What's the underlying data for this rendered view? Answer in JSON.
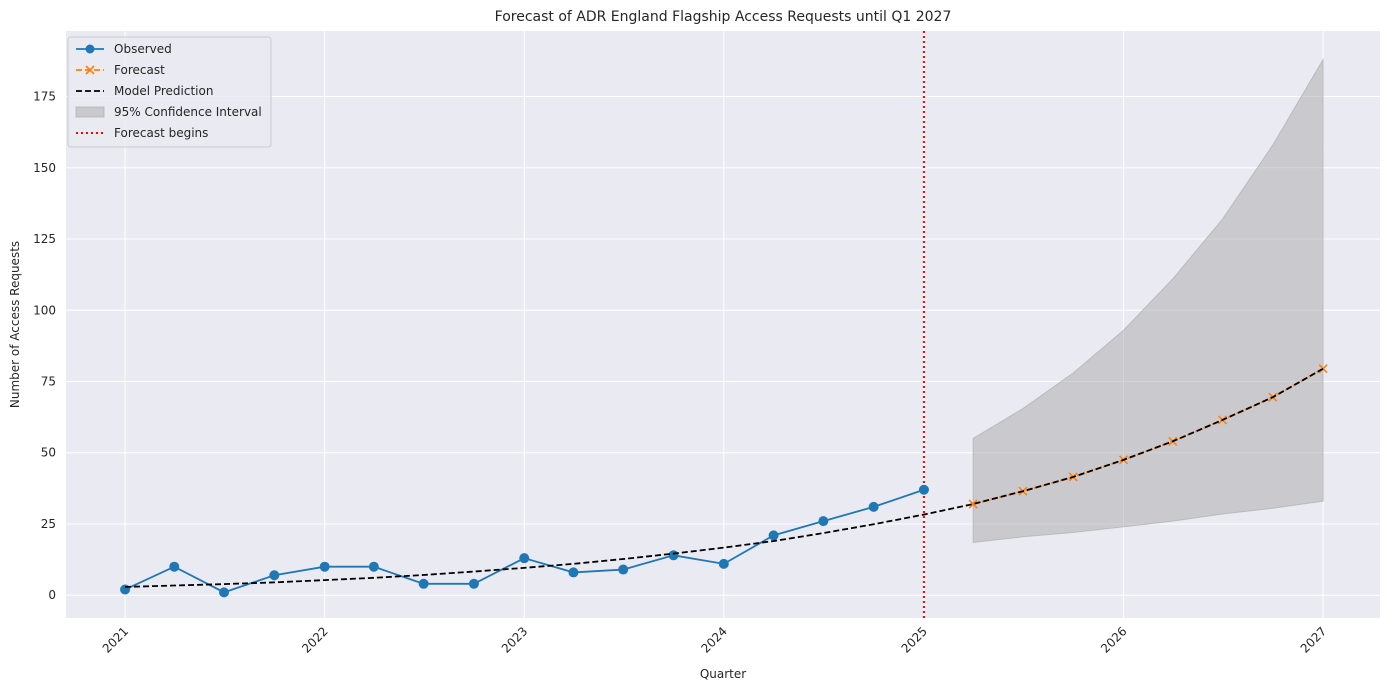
{
  "colors": {
    "plot_bg": "#eaeaf2",
    "grid": "#ffffff",
    "observed": "#1f77b4",
    "forecast": "#ff7f0e",
    "model": "#000000",
    "ci_fill": "#a9a9a9",
    "forecast_line": "#ff0000",
    "legend_bg": "#eaeaf2",
    "legend_border": "#cccccc"
  },
  "chart_data": {
    "type": "line",
    "title": "Forecast of ADR England Flagship Access Requests until Q1 2027",
    "xlabel": "Quarter",
    "ylabel": "Number of Access Requests",
    "x_ticks": [
      "2021",
      "2022",
      "2023",
      "2024",
      "2025",
      "2026",
      "2027"
    ],
    "y_ticks": [
      0,
      25,
      50,
      75,
      100,
      125,
      150,
      175
    ],
    "xlim": [
      "2020-09-15",
      "2027-04-15"
    ],
    "ylim": [
      -8,
      198
    ],
    "grid": true,
    "legend_position": "top-left",
    "forecast_start": "2025-01-01",
    "legend": [
      {
        "key": "observed",
        "label": "Observed"
      },
      {
        "key": "forecast",
        "label": "Forecast"
      },
      {
        "key": "model",
        "label": "Model Prediction"
      },
      {
        "key": "ci",
        "label": "95% Confidence Interval"
      },
      {
        "key": "vline",
        "label": "Forecast begins"
      }
    ],
    "series": [
      {
        "name": "Observed",
        "x": [
          "2021-01-01",
          "2021-04-01",
          "2021-07-01",
          "2021-10-01",
          "2022-01-01",
          "2022-04-01",
          "2022-07-01",
          "2022-10-01",
          "2023-01-01",
          "2023-04-01",
          "2023-07-01",
          "2023-10-01",
          "2024-01-01",
          "2024-04-01",
          "2024-07-01",
          "2024-10-01",
          "2025-01-01"
        ],
        "values": [
          2,
          10,
          1,
          7,
          10,
          10,
          4,
          4,
          13,
          8,
          9,
          14,
          11,
          21,
          26,
          31,
          37
        ]
      },
      {
        "name": "Forecast",
        "x": [
          "2025-04-01",
          "2025-07-01",
          "2025-10-01",
          "2026-01-01",
          "2026-04-01",
          "2026-07-01",
          "2026-10-01",
          "2027-01-01"
        ],
        "values": [
          32,
          36.5,
          41.5,
          47.5,
          54,
          61.5,
          69.5,
          79.5
        ]
      },
      {
        "name": "Model Prediction",
        "x": [
          "2021-01-01",
          "2021-04-01",
          "2021-07-01",
          "2021-10-01",
          "2022-01-01",
          "2022-04-01",
          "2022-07-01",
          "2022-10-01",
          "2023-01-01",
          "2023-04-01",
          "2023-07-01",
          "2023-10-01",
          "2024-01-01",
          "2024-04-01",
          "2024-07-01",
          "2024-10-01",
          "2025-01-01",
          "2025-04-01",
          "2025-07-01",
          "2025-10-01",
          "2026-01-01",
          "2026-04-01",
          "2026-07-01",
          "2026-10-01",
          "2027-01-01"
        ],
        "values": [
          2.9,
          3.4,
          3.9,
          4.5,
          5.3,
          6.1,
          7.1,
          8.3,
          9.6,
          11,
          12.7,
          14.6,
          16.7,
          19,
          21.8,
          24.9,
          28.3,
          32,
          36.5,
          41.5,
          47.5,
          54,
          61.5,
          69.5,
          79.5
        ]
      },
      {
        "name": "95% Confidence Interval",
        "x": [
          "2025-04-01",
          "2025-07-01",
          "2025-10-01",
          "2026-01-01",
          "2026-04-01",
          "2026-07-01",
          "2026-10-01",
          "2027-01-01"
        ],
        "lower": [
          18.5,
          20.5,
          22,
          24,
          26,
          28.5,
          30.5,
          33
        ],
        "upper": [
          55,
          65.5,
          78,
          93,
          111,
          132,
          158,
          188
        ]
      }
    ]
  }
}
